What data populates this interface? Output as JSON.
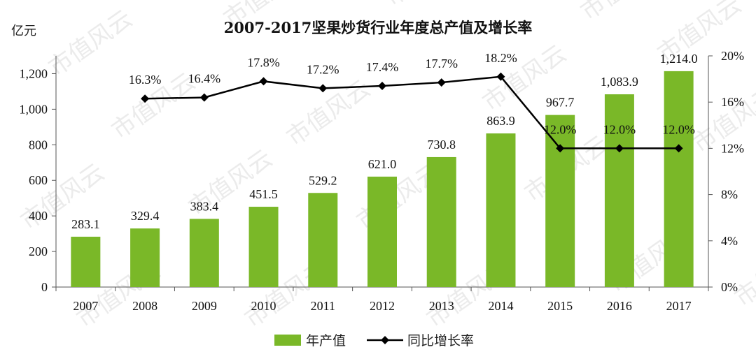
{
  "chart_data": {
    "type": "bar",
    "title": "2007-2017坚果炒货行业年度总产值及增长率",
    "ylabel_left": "亿元",
    "categories": [
      "2007",
      "2008",
      "2009",
      "2010",
      "2011",
      "2012",
      "2013",
      "2014",
      "2015",
      "2016",
      "2017"
    ],
    "series": [
      {
        "name": "年产值",
        "type": "bar",
        "axis": "left",
        "color": "#7ab828",
        "values": [
          283.1,
          329.4,
          383.4,
          451.5,
          529.2,
          621.0,
          730.8,
          863.9,
          967.7,
          1083.9,
          1214.0
        ],
        "labels": [
          "283.1",
          "329.4",
          "383.4",
          "451.5",
          "529.2",
          "621.0",
          "730.8",
          "863.9",
          "967.7",
          "1,083.9",
          "1,214.0"
        ]
      },
      {
        "name": "同比增长率",
        "type": "line",
        "axis": "right",
        "color": "#000000",
        "values": [
          null,
          16.3,
          16.4,
          17.8,
          17.2,
          17.4,
          17.7,
          18.2,
          12.0,
          12.0,
          12.0
        ],
        "labels": [
          "",
          "16.3%",
          "16.4%",
          "17.8%",
          "17.2%",
          "17.4%",
          "17.7%",
          "18.2%",
          "12.0%",
          "12.0%",
          "12.0%"
        ]
      }
    ],
    "y_left": {
      "ylim": [
        0,
        1300
      ],
      "ticks": [
        0,
        200,
        400,
        600,
        800,
        1000,
        1200
      ],
      "tick_labels": [
        "0",
        "200",
        "400",
        "600",
        "800",
        "1,000",
        "1,200"
      ]
    },
    "y_right": {
      "ylim": [
        0,
        20
      ],
      "ticks": [
        0,
        4,
        8,
        12,
        16,
        20
      ],
      "tick_labels": [
        "0%",
        "4%",
        "8%",
        "12%",
        "16%",
        "20%"
      ]
    },
    "grid": false,
    "legend_position": "bottom",
    "watermark": "市值风云"
  }
}
